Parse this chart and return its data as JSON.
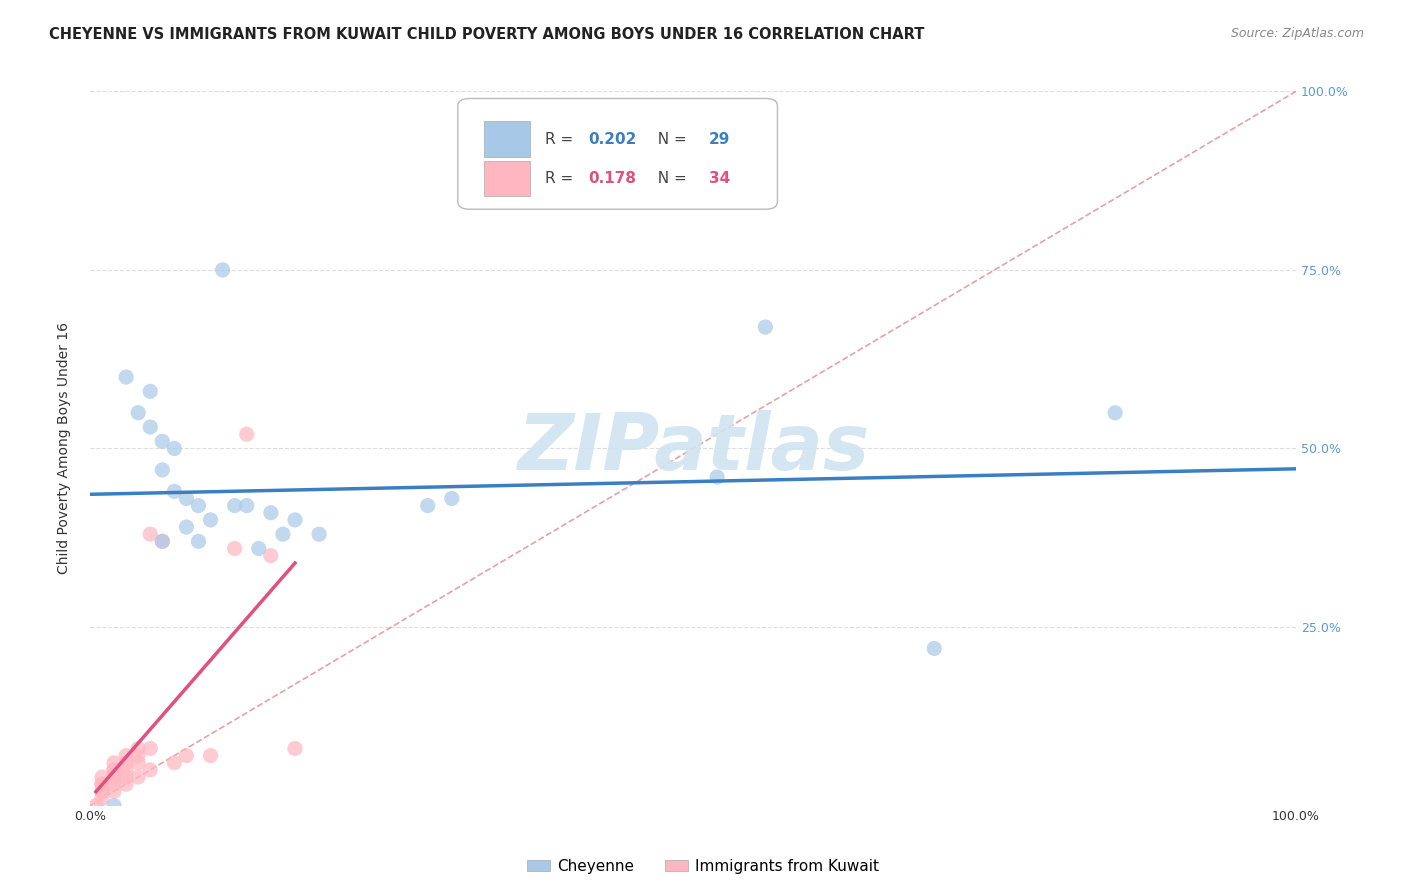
{
  "title": "CHEYENNE VS IMMIGRANTS FROM KUWAIT CHILD POVERTY AMONG BOYS UNDER 16 CORRELATION CHART",
  "source": "Source: ZipAtlas.com",
  "ylabel": "Child Poverty Among Boys Under 16",
  "watermark": "ZIPatlas",
  "legend_entry1": {
    "R": "0.202",
    "N": "29",
    "label": "Cheyenne"
  },
  "legend_entry2": {
    "R": "0.178",
    "N": "34",
    "label": "Immigrants from Kuwait"
  },
  "cheyenne_color": "#a8c8e8",
  "kuwait_color": "#ffb6c1",
  "cheyenne_line_color": "#3a7fc1",
  "kuwait_line_color": "#e05080",
  "diagonal_color": "#e8a0a8",
  "diagonal_style": "--",
  "xlim": [
    0,
    1
  ],
  "ylim": [
    0,
    1
  ],
  "xticks": [
    0,
    0.25,
    0.5,
    0.75,
    1.0
  ],
  "yticks": [
    0,
    0.25,
    0.5,
    0.75,
    1.0
  ],
  "xticklabels": [
    "0.0%",
    "",
    "",
    "",
    "100.0%"
  ],
  "right_yticklabels": [
    "",
    "25.0%",
    "50.0%",
    "75.0%",
    "100.0%"
  ],
  "cheyenne_x": [
    0.02,
    0.05,
    0.05,
    0.06,
    0.06,
    0.07,
    0.07,
    0.08,
    0.08,
    0.09,
    0.1,
    0.12,
    0.14,
    0.16,
    0.19,
    0.28,
    0.3,
    0.52,
    0.56,
    0.7,
    0.85,
    0.03,
    0.04,
    0.06,
    0.09,
    0.11,
    0.13,
    0.15,
    0.17
  ],
  "cheyenne_y": [
    0.0,
    0.53,
    0.58,
    0.51,
    0.47,
    0.44,
    0.5,
    0.43,
    0.39,
    0.42,
    0.4,
    0.42,
    0.36,
    0.38,
    0.38,
    0.42,
    0.43,
    0.46,
    0.67,
    0.22,
    0.55,
    0.6,
    0.55,
    0.37,
    0.37,
    0.75,
    0.42,
    0.41,
    0.4
  ],
  "kuwait_x": [
    0.005,
    0.01,
    0.01,
    0.01,
    0.01,
    0.01,
    0.01,
    0.02,
    0.02,
    0.02,
    0.02,
    0.02,
    0.02,
    0.02,
    0.03,
    0.03,
    0.03,
    0.03,
    0.03,
    0.04,
    0.04,
    0.04,
    0.04,
    0.05,
    0.05,
    0.05,
    0.06,
    0.07,
    0.08,
    0.1,
    0.12,
    0.13,
    0.15,
    0.17
  ],
  "kuwait_y": [
    0.0,
    0.01,
    0.02,
    0.02,
    0.03,
    0.03,
    0.04,
    0.02,
    0.03,
    0.04,
    0.04,
    0.05,
    0.05,
    0.06,
    0.03,
    0.04,
    0.05,
    0.06,
    0.07,
    0.04,
    0.06,
    0.07,
    0.08,
    0.05,
    0.08,
    0.38,
    0.37,
    0.06,
    0.07,
    0.07,
    0.36,
    0.52,
    0.35,
    0.08
  ],
  "title_fontsize": 10.5,
  "source_fontsize": 9,
  "label_fontsize": 10,
  "tick_fontsize": 9,
  "right_tick_color": "#5b9bd5"
}
